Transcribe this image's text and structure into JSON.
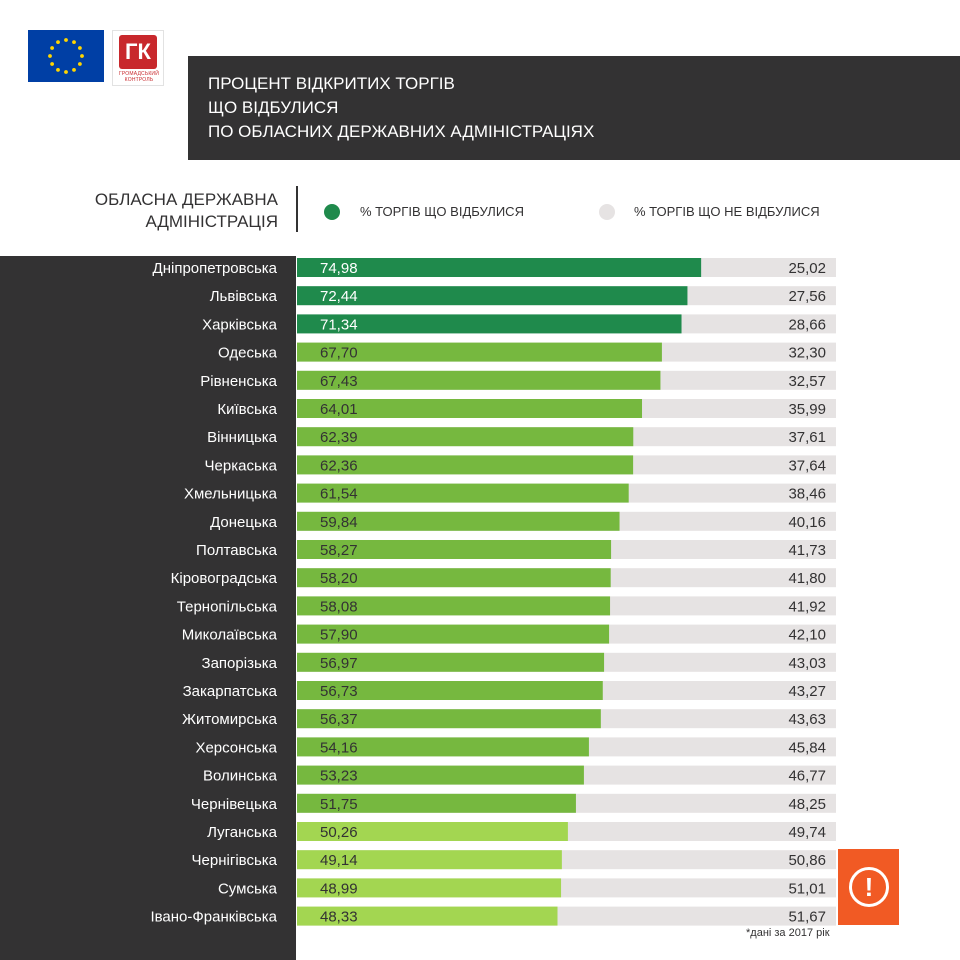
{
  "logos": {
    "eu_flag_icon": "eu-flag-icon",
    "gk_letters": "ГК",
    "gk_subtitle_line1": "ГРОМАДСЬКИЙ",
    "gk_subtitle_line2": "КОНТРОЛЬ"
  },
  "title": {
    "line1": "ПРОЦЕНТ ВІДКРИТИХ ТОРГІВ",
    "line2": "ЩО ВІДБУЛИСЯ",
    "line3": "ПО ОБЛАСНИХ ДЕРЖАВНИХ АДМІНІСТРАЦІЯХ"
  },
  "header": {
    "column_label_line1": "ОБЛАСНА ДЕРЖАВНА",
    "column_label_line2": "АДМІНІСТРАЦІЯ"
  },
  "legend": {
    "held_label": "% ТОРГІВ ЩО ВІДБУЛИСЯ",
    "not_held_label": "% ТОРГІВ ЩО НЕ ВІДБУЛИСЯ"
  },
  "colors": {
    "panel_dark": "#333233",
    "held_dark": "#1f8a4c",
    "held_mid": "#76b83f",
    "held_light": "#a3d651",
    "not_held": "#e6e3e3",
    "alert": "#f15a24"
  },
  "alert": {
    "icon": "exclamation-icon",
    "glyph": "!"
  },
  "footnote": "*дані за 2017 рік",
  "chart_data": {
    "type": "bar",
    "orientation": "horizontal",
    "stacked": true,
    "categories": [
      "Дніпропетровська",
      "Львівська",
      "Харківська",
      "Одеська",
      "Рівненська",
      "Київська",
      "Вінницька",
      "Черкаська",
      "Хмельницька",
      "Донецька",
      "Полтавська",
      "Кіровоградська",
      "Тернопільська",
      "Миколаївська",
      "Запорізька",
      "Закарпатська",
      "Житомирська",
      "Херсонська",
      "Волинська",
      "Чернівецька",
      "Луганська",
      "Чернігівська",
      "Сумська",
      "Івано-Франківська"
    ],
    "series": [
      {
        "name": "% ТОРГІВ ЩО ВІДБУЛИСЯ",
        "values": [
          74.98,
          72.44,
          71.34,
          67.7,
          67.43,
          64.01,
          62.39,
          62.36,
          61.54,
          59.84,
          58.27,
          58.2,
          58.08,
          57.9,
          56.97,
          56.73,
          56.37,
          54.16,
          53.23,
          51.75,
          50.26,
          49.14,
          48.99,
          48.33
        ]
      },
      {
        "name": "% ТОРГІВ ЩО НЕ ВІДБУЛИСЯ",
        "values": [
          25.02,
          27.56,
          28.66,
          32.3,
          32.57,
          35.99,
          37.61,
          37.64,
          38.46,
          40.16,
          41.73,
          41.8,
          41.92,
          42.1,
          43.03,
          43.27,
          43.63,
          45.84,
          46.77,
          48.25,
          49.74,
          50.86,
          51.01,
          51.67
        ]
      }
    ],
    "held_labels": [
      "74,98",
      "72,44",
      "71,34",
      "67,70",
      "67,43",
      "64,01",
      "62,39",
      "62,36",
      "61,54",
      "59,84",
      "58,27",
      "58,20",
      "58,08",
      "57,90",
      "56,97",
      "56,73",
      "56,37",
      "54,16",
      "53,23",
      "51,75",
      "50,26",
      "49,14",
      "48,99",
      "48,33"
    ],
    "not_held_labels": [
      "25,02",
      "27,56",
      "28,66",
      "32,30",
      "32,57",
      "35,99",
      "37,61",
      "37,64",
      "38,46",
      "40,16",
      "41,73",
      "41,80",
      "41,92",
      "42,10",
      "43,03",
      "43,27",
      "43,63",
      "45,84",
      "46,77",
      "48,25",
      "49,74",
      "50,86",
      "51,01",
      "51,67"
    ],
    "xlim": [
      0,
      100
    ],
    "legend_position": "top",
    "grid": false
  }
}
